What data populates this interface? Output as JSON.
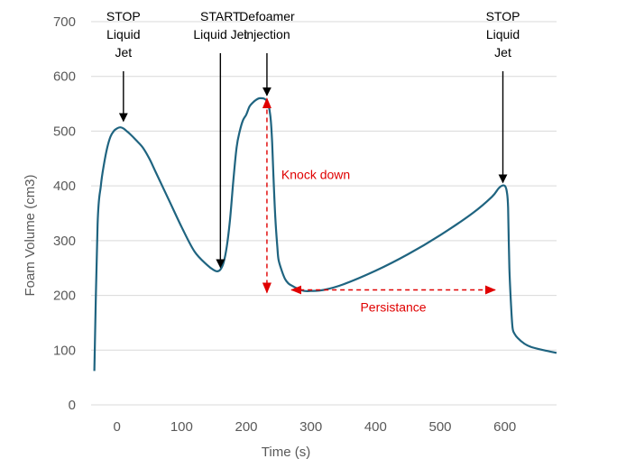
{
  "chart_data": {
    "type": "line",
    "title": "",
    "xlabel": "Time (s)",
    "ylabel": "Foam Volume (cm3)",
    "xlim": [
      -40,
      680
    ],
    "ylim": [
      0,
      700
    ],
    "xticks": [
      "0",
      "100",
      "200",
      "300",
      "400",
      "500",
      "600"
    ],
    "yticks": [
      "0",
      "100",
      "200",
      "300",
      "400",
      "500",
      "600",
      "700"
    ],
    "grid": "horizontal",
    "legend": "none",
    "colors": {
      "line": "#1f6480",
      "annotation": "#000000",
      "highlight": "#e00000",
      "grid": "#d9d9d9",
      "tick_text": "#595959"
    },
    "series": [
      {
        "x": [
          -35,
          -30,
          -25,
          -20,
          -15,
          -10,
          -5,
          0,
          5,
          10,
          15,
          20,
          30,
          40,
          50,
          60,
          80,
          100,
          120,
          140,
          150,
          155,
          160,
          165,
          170,
          175,
          180,
          185,
          190,
          195,
          200,
          205,
          210,
          215,
          220,
          225,
          228,
          232,
          235,
          238,
          240,
          242,
          245,
          248,
          250,
          255,
          260,
          265,
          270,
          280,
          290,
          300,
          320,
          350,
          400,
          450,
          500,
          550,
          580,
          590,
          595,
          600,
          603,
          605,
          607,
          610,
          612,
          615,
          620,
          630,
          640,
          660,
          680
        ],
        "y": [
          62,
          330,
          400,
          440,
          470,
          490,
          500,
          505,
          507,
          505,
          500,
          495,
          483,
          470,
          450,
          425,
          375,
          325,
          280,
          255,
          246,
          244,
          247,
          260,
          290,
          340,
          410,
          470,
          500,
          520,
          530,
          545,
          552,
          557,
          560,
          560,
          559,
          555,
          545,
          520,
          480,
          420,
          340,
          290,
          265,
          245,
          230,
          222,
          218,
          212,
          208,
          208,
          210,
          220,
          245,
          275,
          310,
          350,
          380,
          395,
          400,
          400,
          390,
          360,
          250,
          175,
          140,
          130,
          122,
          112,
          106,
          100,
          95
        ]
      }
    ],
    "annotations": [
      {
        "lines": [
          "STOP",
          "Liquid",
          "Jet"
        ],
        "x": 10,
        "y": 515,
        "type": "down-arrow-black"
      },
      {
        "lines": [
          "START",
          "Liquid Jet"
        ],
        "x": 160,
        "y": 248,
        "type": "down-arrow-black"
      },
      {
        "lines": [
          "Defoamer",
          "injection"
        ],
        "x": 232,
        "y": 562,
        "type": "down-arrow-black"
      },
      {
        "lines": [
          "STOP",
          "Liquid",
          "Jet"
        ],
        "x": 597,
        "y": 403,
        "type": "down-arrow-black"
      },
      {
        "text": "Knock down",
        "type": "double-arrow-red-vertical",
        "x": 232,
        "y_from": 560,
        "y_to": 205
      },
      {
        "text": "Persistance",
        "type": "double-arrow-red-horizontal",
        "y": 210,
        "x_from": 270,
        "x_to": 585
      }
    ]
  },
  "axis_titles": {
    "x": "Time (s)",
    "y": "Foam Volume (cm3)"
  }
}
